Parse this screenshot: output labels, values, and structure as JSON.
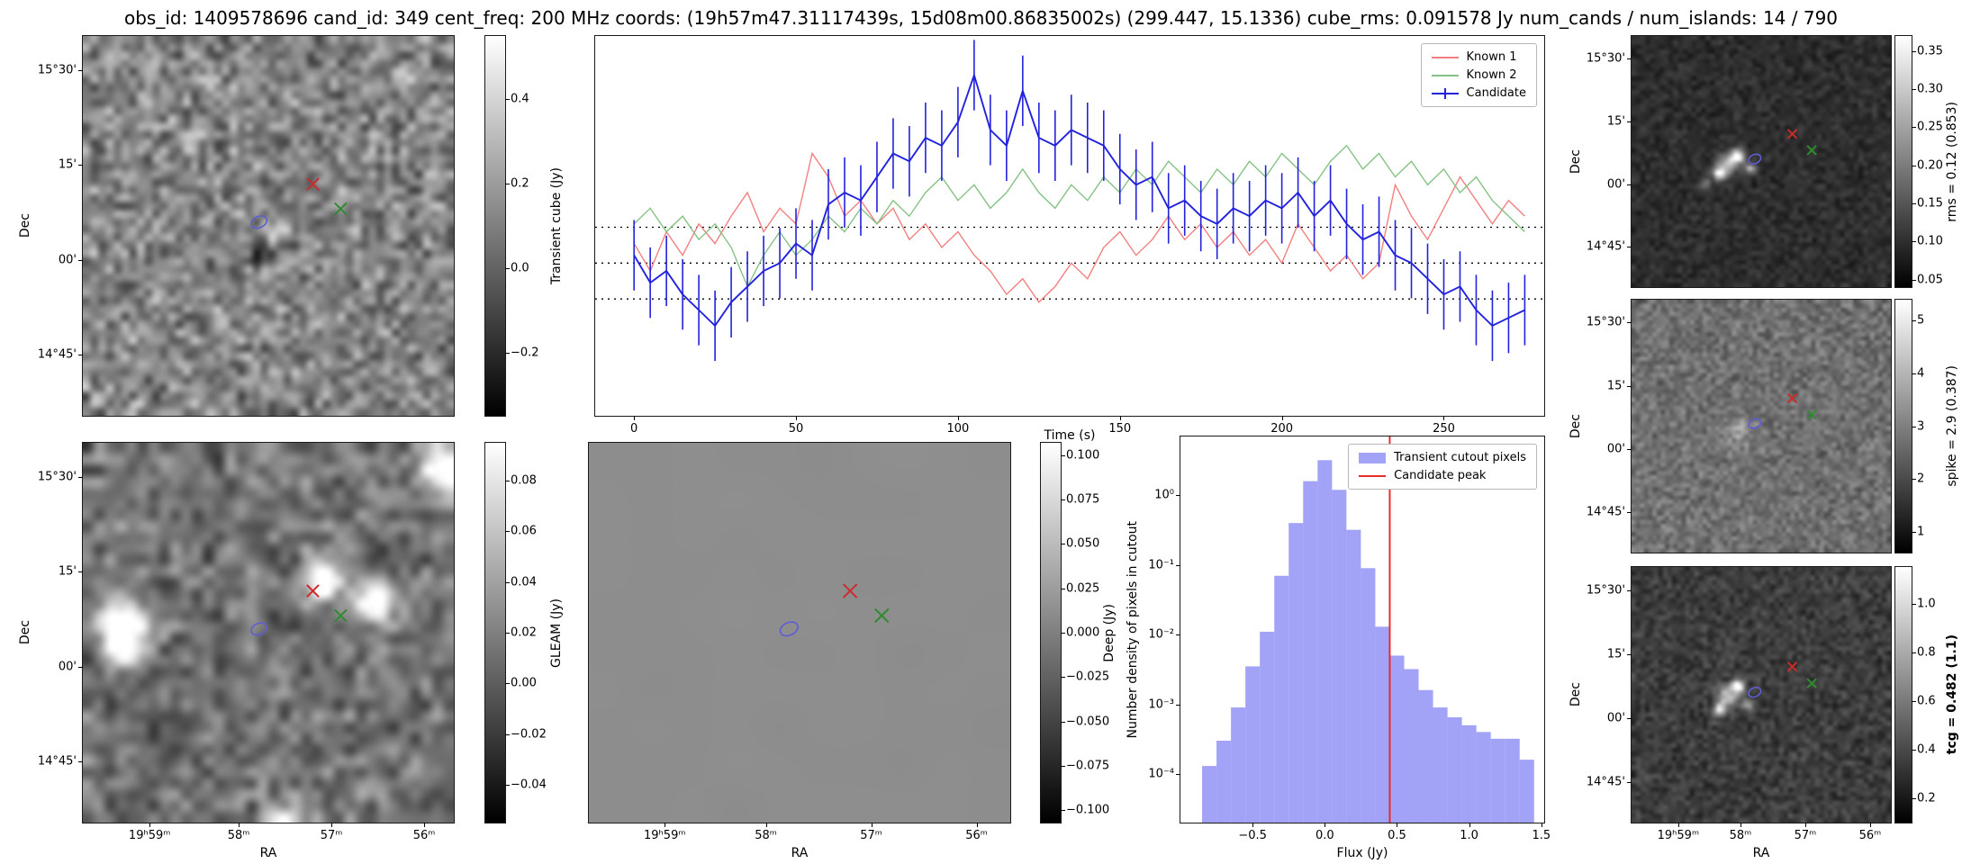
{
  "title": "obs_id: 1409578696 cand_id: 349 cent_freq: 200 MHz coords: (19h57m47.31117439s, 15d08m00.86835002s) (299.447, 15.1336) cube_rms: 0.091578 Jy num_cands / num_islands: 14 / 790",
  "axes": {
    "dec_label": "Dec",
    "ra_label": "RA",
    "dec_ticks": {
      "labels": [
        "15°30'",
        "15'",
        "00'",
        "14°45'"
      ],
      "fracs": [
        0.09,
        0.34,
        0.59,
        0.84
      ]
    },
    "ra_ticks": {
      "labels": [
        "19ʰ59ᵐ",
        "58ᵐ",
        "57ᵐ",
        "56ᵐ"
      ],
      "fracs": [
        0.18,
        0.42,
        0.67,
        0.92
      ]
    }
  },
  "markers": {
    "known1": {
      "shape": "x",
      "color": "#cc2b2b",
      "fx": 0.62,
      "fy": 0.39
    },
    "known2": {
      "shape": "x",
      "color": "#2f8b2f",
      "fx": 0.695,
      "fy": 0.455
    },
    "candidate": {
      "shape": "contour",
      "color": "#5d5dd5",
      "fx": 0.475,
      "fy": 0.49
    }
  },
  "panels": {
    "transient_cube": {
      "colorbar_label": "Transient cube (Jy)",
      "cbar_range": [
        -0.35,
        0.55
      ],
      "cbar_ticks": [
        {
          "v": 0.4,
          "label": "0.4"
        },
        {
          "v": 0.2,
          "label": "0.2"
        },
        {
          "v": 0.0,
          "label": "0.0"
        },
        {
          "v": -0.2,
          "label": "−0.2"
        }
      ],
      "noise": {
        "seed": 42,
        "cells": 48,
        "base": 0.52,
        "contrast": 0.3,
        "spots": [
          {
            "fx": 0.47,
            "fy": 0.56,
            "r": 1.1,
            "a": -0.5
          },
          {
            "fx": 0.51,
            "fy": 0.5,
            "r": 0.9,
            "a": 0.45
          },
          {
            "fx": 0.3,
            "fy": 0.25,
            "r": 1.0,
            "a": 0.28
          },
          {
            "fx": 0.87,
            "fy": 0.1,
            "r": 1.0,
            "a": 0.26
          }
        ]
      }
    },
    "gleam": {
      "colorbar_label": "GLEAM (Jy)",
      "cbar_range": [
        -0.055,
        0.095
      ],
      "cbar_ticks": [
        {
          "v": 0.08,
          "label": "0.08"
        },
        {
          "v": 0.06,
          "label": "0.06"
        },
        {
          "v": 0.04,
          "label": "0.04"
        },
        {
          "v": 0.02,
          "label": "0.02"
        },
        {
          "v": 0.0,
          "label": "0.00"
        },
        {
          "v": -0.02,
          "label": "−0.02"
        },
        {
          "v": -0.04,
          "label": "−0.04"
        }
      ],
      "noise": {
        "seed": 7,
        "cells": 34,
        "base": 0.45,
        "contrast": 0.26,
        "spots": [
          {
            "fx": 0.095,
            "fy": 0.47,
            "r": 1.5,
            "a": 1.0
          },
          {
            "fx": 0.635,
            "fy": 0.35,
            "r": 1.0,
            "a": 1.0
          },
          {
            "fx": 0.77,
            "fy": 0.4,
            "r": 1.2,
            "a": 0.9
          },
          {
            "fx": 0.965,
            "fy": 0.055,
            "r": 1.3,
            "a": 1.0
          },
          {
            "fx": 0.52,
            "fy": 0.985,
            "r": 1.1,
            "a": 0.8
          },
          {
            "fx": 0.1,
            "fy": 0.53,
            "r": 1.0,
            "a": 0.7
          }
        ]
      }
    },
    "deep": {
      "colorbar_label": "Deep (Jy)",
      "cbar_range": [
        -0.107,
        0.107
      ],
      "cbar_ticks": [
        {
          "v": 0.1,
          "label": "0.100"
        },
        {
          "v": 0.075,
          "label": "0.075"
        },
        {
          "v": 0.05,
          "label": "0.050"
        },
        {
          "v": 0.025,
          "label": "0.025"
        },
        {
          "v": 0.0,
          "label": "0.000"
        },
        {
          "v": -0.025,
          "label": "−0.025"
        },
        {
          "v": -0.05,
          "label": "−0.050"
        },
        {
          "v": -0.075,
          "label": "−0.075"
        },
        {
          "v": -0.1,
          "label": "−0.100"
        }
      ],
      "noise": {
        "seed": 3,
        "cells": 10,
        "base": 0.555,
        "contrast": 0.006,
        "spots": []
      }
    },
    "rms": {
      "colorbar_label": "rms = 0.12 (0.853)",
      "cbar_range": [
        0.04,
        0.37
      ],
      "cbar_ticks": [
        {
          "v": 0.35,
          "label": "0.35"
        },
        {
          "v": 0.3,
          "label": "0.30"
        },
        {
          "v": 0.25,
          "label": "0.25"
        },
        {
          "v": 0.2,
          "label": "0.20"
        },
        {
          "v": 0.15,
          "label": "0.15"
        },
        {
          "v": 0.1,
          "label": "0.10"
        },
        {
          "v": 0.05,
          "label": "0.05"
        }
      ],
      "noise": {
        "seed": 11,
        "cells": 56,
        "base": 0.18,
        "contrast": 0.1,
        "spots": [
          {
            "fx": 0.36,
            "fy": 0.5,
            "r": 1.6,
            "a": 0.55
          },
          {
            "fx": 0.4,
            "fy": 0.47,
            "r": 1.0,
            "a": 0.9
          },
          {
            "fx": 0.33,
            "fy": 0.54,
            "r": 0.9,
            "a": 0.8
          },
          {
            "fx": 0.45,
            "fy": 0.52,
            "r": 0.8,
            "a": 0.6
          },
          {
            "fx": 0.28,
            "fy": 0.58,
            "r": 0.7,
            "a": 0.4
          }
        ]
      }
    },
    "spike": {
      "colorbar_label": "spike = 2.9 (0.387)",
      "cbar_range": [
        0.6,
        5.4
      ],
      "cbar_ticks": [
        {
          "v": 5,
          "label": "5"
        },
        {
          "v": 4,
          "label": "4"
        },
        {
          "v": 3,
          "label": "3"
        },
        {
          "v": 2,
          "label": "2"
        },
        {
          "v": 1,
          "label": "1"
        }
      ],
      "noise": {
        "seed": 13,
        "cells": 62,
        "base": 0.44,
        "contrast": 0.16,
        "spots": [
          {
            "fx": 0.4,
            "fy": 0.53,
            "r": 2.5,
            "a": 0.12
          },
          {
            "fx": 0.42,
            "fy": 0.5,
            "r": 1.2,
            "a": 0.18
          }
        ]
      }
    },
    "tcg": {
      "colorbar_label": "tcg = 0.482 (1.1)",
      "cbar_range": [
        0.1,
        1.15
      ],
      "cbar_ticks": [
        {
          "v": 1.0,
          "label": "1.0"
        },
        {
          "v": 0.8,
          "label": "0.8"
        },
        {
          "v": 0.6,
          "label": "0.6"
        },
        {
          "v": 0.4,
          "label": "0.4"
        },
        {
          "v": 0.2,
          "label": "0.2"
        }
      ],
      "noise": {
        "seed": 17,
        "cells": 58,
        "base": 0.24,
        "contrast": 0.13,
        "spots": [
          {
            "fx": 0.36,
            "fy": 0.5,
            "r": 1.5,
            "a": 0.6
          },
          {
            "fx": 0.4,
            "fy": 0.46,
            "r": 1.0,
            "a": 0.85
          },
          {
            "fx": 0.33,
            "fy": 0.55,
            "r": 0.9,
            "a": 0.7
          },
          {
            "fx": 0.44,
            "fy": 0.53,
            "r": 0.8,
            "a": 0.5
          }
        ]
      }
    }
  },
  "chart_data": [
    {
      "type": "line",
      "name": "light_curve",
      "xlabel": "Time (s)",
      "xlim": [
        -12,
        281
      ],
      "ylim": [
        -0.39,
        0.58
      ],
      "xticks": [
        0,
        50,
        100,
        150,
        200,
        250
      ],
      "hlines": [
        0.0916,
        0.0,
        -0.0916
      ],
      "legend_position": "upper right",
      "x": [
        0,
        5,
        10,
        15,
        20,
        25,
        30,
        35,
        40,
        45,
        50,
        55,
        60,
        65,
        70,
        75,
        80,
        85,
        90,
        95,
        100,
        105,
        110,
        115,
        120,
        125,
        130,
        135,
        140,
        145,
        150,
        155,
        160,
        165,
        170,
        175,
        180,
        185,
        190,
        195,
        200,
        205,
        210,
        215,
        220,
        225,
        230,
        235,
        240,
        245,
        250,
        255,
        260,
        265,
        270,
        275
      ],
      "series": [
        {
          "name": "Known 1",
          "color": "#f28080",
          "values": [
            0.05,
            -0.02,
            0.08,
            0.02,
            0.1,
            0.05,
            0.12,
            0.18,
            0.08,
            0.14,
            0.1,
            0.28,
            0.22,
            0.12,
            0.16,
            0.1,
            0.14,
            0.06,
            0.1,
            0.04,
            0.08,
            0.02,
            -0.02,
            -0.08,
            -0.04,
            -0.1,
            -0.06,
            0.0,
            -0.04,
            0.04,
            0.08,
            0.02,
            0.06,
            0.12,
            0.06,
            0.1,
            0.04,
            0.08,
            0.02,
            0.06,
            0.0,
            0.1,
            0.04,
            -0.02,
            0.02,
            -0.04,
            0.0,
            0.2,
            0.12,
            0.06,
            0.14,
            0.22,
            0.16,
            0.1,
            0.16,
            0.12
          ]
        },
        {
          "name": "Known 2",
          "color": "#85c285",
          "values": [
            0.1,
            0.14,
            0.08,
            0.12,
            0.06,
            0.1,
            0.04,
            -0.06,
            0.02,
            0.08,
            0.02,
            0.06,
            0.12,
            0.08,
            0.14,
            0.1,
            0.16,
            0.12,
            0.18,
            0.22,
            0.16,
            0.2,
            0.14,
            0.18,
            0.24,
            0.18,
            0.14,
            0.2,
            0.16,
            0.22,
            0.18,
            0.24,
            0.2,
            0.26,
            0.22,
            0.18,
            0.24,
            0.2,
            0.26,
            0.22,
            0.28,
            0.24,
            0.2,
            0.26,
            0.3,
            0.24,
            0.28,
            0.22,
            0.26,
            0.2,
            0.24,
            0.18,
            0.22,
            0.16,
            0.12,
            0.08
          ]
        },
        {
          "name": "Candidate",
          "color": "#2222dd",
          "yerr": 0.09,
          "values": [
            0.02,
            -0.05,
            -0.02,
            -0.08,
            -0.12,
            -0.16,
            -0.1,
            -0.06,
            -0.02,
            0.0,
            0.05,
            0.02,
            0.15,
            0.18,
            0.16,
            0.22,
            0.28,
            0.26,
            0.32,
            0.3,
            0.36,
            0.48,
            0.34,
            0.3,
            0.44,
            0.32,
            0.3,
            0.34,
            0.32,
            0.3,
            0.24,
            0.2,
            0.22,
            0.14,
            0.16,
            0.12,
            0.1,
            0.14,
            0.12,
            0.16,
            0.14,
            0.18,
            0.12,
            0.16,
            0.1,
            0.06,
            0.08,
            0.02,
            0.0,
            -0.04,
            -0.08,
            -0.06,
            -0.12,
            -0.16,
            -0.14,
            -0.12
          ]
        }
      ]
    },
    {
      "type": "bar",
      "name": "flux_histogram",
      "xlabel": "Flux (Jy)",
      "ylabel": "Number density of pixels in cutout",
      "yscale": "log",
      "xlim": [
        -1.0,
        1.52
      ],
      "ylim": [
        2e-05,
        7
      ],
      "xticks": [
        {
          "v": -0.5,
          "label": "−0.5"
        },
        {
          "v": 0.0,
          "label": "0.0"
        },
        {
          "v": 0.5,
          "label": "0.5"
        },
        {
          "v": 1.0,
          "label": "1.0"
        },
        {
          "v": 1.5,
          "label": "1.5"
        }
      ],
      "yticks": [
        {
          "v": 1,
          "label": "10⁰"
        },
        {
          "v": 0.1,
          "label": "10⁻¹"
        },
        {
          "v": 0.01,
          "label": "10⁻²"
        },
        {
          "v": 0.001,
          "label": "10⁻³"
        },
        {
          "v": 0.0001,
          "label": "10⁻⁴"
        }
      ],
      "bin_width": 0.1,
      "bin_centers": [
        -0.8,
        -0.7,
        -0.6,
        -0.5,
        -0.4,
        -0.3,
        -0.2,
        -0.1,
        0.0,
        0.1,
        0.2,
        0.3,
        0.4,
        0.5,
        0.6,
        0.7,
        0.8,
        0.9,
        1.0,
        1.1,
        1.2,
        1.3,
        1.4
      ],
      "densities": [
        0.00013,
        0.0003,
        0.0009,
        0.0035,
        0.011,
        0.07,
        0.4,
        1.6,
        3.2,
        1.2,
        0.32,
        0.09,
        0.013,
        0.005,
        0.0032,
        0.0016,
        0.0009,
        0.00065,
        0.0005,
        0.0004,
        0.00032,
        0.00032,
        0.00016
      ],
      "bar_color": "#7b7bf2",
      "candidate_peak": 0.45,
      "peak_color": "#e82c2c",
      "legend": [
        {
          "label": "Transient cutout pixels",
          "type": "patch",
          "color": "#7b7bf2"
        },
        {
          "label": "Candidate peak",
          "type": "line",
          "color": "#e82c2c"
        }
      ]
    }
  ]
}
